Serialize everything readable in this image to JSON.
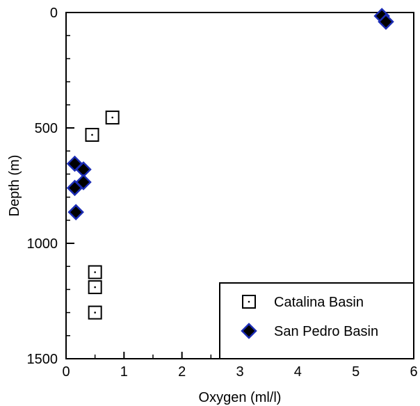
{
  "chart_data": {
    "type": "scatter",
    "xlabel": "Oxygen (ml/l)",
    "ylabel": "Depth (m)",
    "xlim": [
      0,
      6
    ],
    "ylim": [
      0,
      1500
    ],
    "y_inverted": true,
    "x_ticks": [
      "0",
      "1",
      "2",
      "3",
      "4",
      "5",
      "6"
    ],
    "y_ticks": [
      "0",
      "500",
      "1000",
      "1500"
    ],
    "grid": false,
    "legend_position": "bottom-right",
    "series": [
      {
        "name": "Catalina Basin",
        "marker": "open-square",
        "color": "#000000",
        "points": [
          {
            "x": 0.8,
            "y": 455
          },
          {
            "x": 0.45,
            "y": 530
          },
          {
            "x": 0.5,
            "y": 1125
          },
          {
            "x": 0.5,
            "y": 1190
          },
          {
            "x": 0.5,
            "y": 1300
          }
        ]
      },
      {
        "name": "San Pedro Basin",
        "marker": "filled-diamond",
        "color": "#000000",
        "edge_color": "#1c2db5",
        "points": [
          {
            "x": 5.45,
            "y": 15
          },
          {
            "x": 5.52,
            "y": 40
          },
          {
            "x": 0.15,
            "y": 655
          },
          {
            "x": 0.3,
            "y": 680
          },
          {
            "x": 0.3,
            "y": 735
          },
          {
            "x": 0.15,
            "y": 760
          },
          {
            "x": 0.17,
            "y": 865
          }
        ]
      }
    ]
  }
}
